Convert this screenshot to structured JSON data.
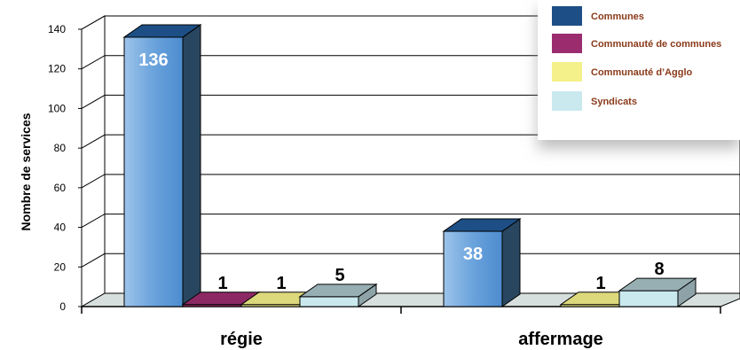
{
  "chart_data": {
    "type": "bar",
    "ylabel": "Nombre de services",
    "ylim": [
      0,
      140
    ],
    "yticks": [
      0,
      20,
      40,
      60,
      80,
      100,
      120,
      140
    ],
    "categories": [
      "régie",
      "affermage"
    ],
    "series": [
      {
        "name": "Communes",
        "values": [
          136,
          38
        ],
        "color": "#5b9bd5"
      },
      {
        "name": "Communauté de communes",
        "values": [
          1,
          null
        ],
        "color": "#9b2d6f"
      },
      {
        "name": "Communauté d’Agglo",
        "values": [
          1,
          1
        ],
        "color": "#f4f08a"
      },
      {
        "name": "Syndicats",
        "values": [
          5,
          8
        ],
        "color": "#c9e9ef"
      }
    ],
    "legend_position": "top-right",
    "grid": true
  }
}
